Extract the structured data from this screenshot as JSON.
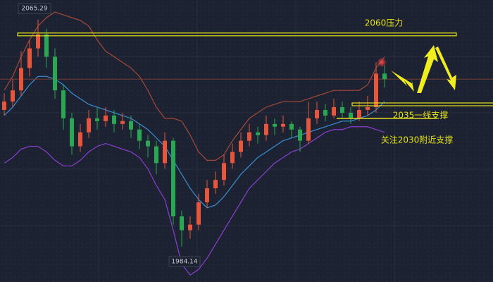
{
  "chart_data": {
    "type": "candlestick",
    "open": [
      2033,
      2036,
      2040,
      2048,
      2055,
      2060,
      2052,
      2040,
      2030,
      2020,
      2025,
      2030,
      2029,
      2031,
      2028,
      2029,
      2026,
      2022,
      2020,
      2014,
      2022,
      1995,
      1990,
      1992,
      2000,
      2005,
      2008,
      2014,
      2018,
      2022,
      2025,
      2024,
      2028,
      2027,
      2028,
      2026,
      2022,
      2030,
      2033,
      2031,
      2034,
      2032,
      2030,
      2033,
      2034,
      2046
    ],
    "high": [
      2039,
      2044,
      2054,
      2058,
      2065.29,
      2062,
      2055,
      2042,
      2032,
      2028,
      2033,
      2034,
      2034,
      2033,
      2032,
      2031,
      2028,
      2024,
      2022,
      2025,
      2023,
      1997,
      1995,
      2003,
      2008,
      2011,
      2017,
      2021,
      2025,
      2028,
      2027,
      2031,
      2030,
      2031,
      2029,
      2027,
      2036,
      2036,
      2035,
      2037,
      2036,
      2034,
      2036,
      2038,
      2050,
      2049
    ],
    "low": [
      2031,
      2034,
      2038,
      2045,
      2052,
      2048,
      2037,
      2026,
      2017,
      2018,
      2023,
      2026,
      2027,
      2025,
      2026,
      2023,
      2019,
      2016,
      2010,
      2012,
      1992,
      1984.14,
      1987,
      1990,
      1998,
      2003,
      2006,
      2012,
      2016,
      2020,
      2021,
      2022,
      2024,
      2025,
      2023,
      2018,
      2021,
      2028,
      2029,
      2030,
      2030,
      2028,
      2029,
      2031,
      2032,
      2041
    ],
    "close": [
      2036,
      2040,
      2048,
      2055,
      2060,
      2052,
      2040,
      2030,
      2020,
      2025,
      2030,
      2029,
      2031,
      2028,
      2029,
      2026,
      2022,
      2020,
      2014,
      2022,
      1995,
      1990,
      1992,
      2000,
      2005,
      2008,
      2014,
      2018,
      2022,
      2025,
      2024,
      2028,
      2027,
      2028,
      2026,
      2022,
      2030,
      2033,
      2031,
      2034,
      2032,
      2030,
      2033,
      2034,
      2046,
      2044
    ],
    "up_color": "#e8553a",
    "down_color": "#27a851",
    "lines": [
      {
        "color": "#a5493a",
        "values": [
          2040,
          2045,
          2052,
          2058,
          2063,
          2066,
          2068,
          2067,
          2066,
          2065,
          2063,
          2058,
          2054,
          2052,
          2050,
          2048,
          2045,
          2040,
          2034,
          2030,
          2030,
          2029,
          2024,
          2018,
          2015,
          2015,
          2017,
          2022,
          2026,
          2030,
          2032,
          2034,
          2035,
          2036,
          2036,
          2036,
          2037,
          2038,
          2039,
          2040,
          2040,
          2040,
          2040,
          2042,
          2048,
          2052
        ]
      },
      {
        "color": "#8a3fd1",
        "values": [
          2014,
          2016,
          2019,
          2020,
          2020,
          2018,
          2015,
          2013,
          2013,
          2015,
          2018,
          2020,
          2021,
          2020,
          2019,
          2018,
          2016,
          2012,
          2006,
          2001,
          1990,
          1978,
          1974,
          1976,
          1980,
          1985,
          1990,
          1995,
          2000,
          2005,
          2008,
          2011,
          2014,
          2016,
          2018,
          2019,
          2021,
          2023,
          2025,
          2026,
          2026,
          2027,
          2027,
          2027,
          2026,
          2025
        ]
      },
      {
        "color": "#3a8fd6",
        "values": [
          2031,
          2034,
          2038,
          2042,
          2045,
          2045,
          2044,
          2042,
          2039,
          2037,
          2035,
          2034,
          2033,
          2032,
          2031,
          2030,
          2028,
          2026,
          2023,
          2020,
          2015,
          2010,
          2005,
          2001,
          1998,
          1999,
          2002,
          2006,
          2010,
          2013,
          2016,
          2018,
          2020,
          2022,
          2023,
          2024,
          2025,
          2026,
          2027,
          2028,
          2029,
          2029,
          2030,
          2031,
          2033,
          2036
        ]
      }
    ],
    "levels": [
      {
        "value": 2060,
        "label": "2060压力"
      },
      {
        "value": 2035,
        "label": "2035一线支撑"
      },
      {
        "value": 2030,
        "label": "关注2030附近支撑"
      }
    ],
    "level_color": "#e6e21a",
    "ylim": [
      1971.5,
      2072.3
    ]
  }
}
